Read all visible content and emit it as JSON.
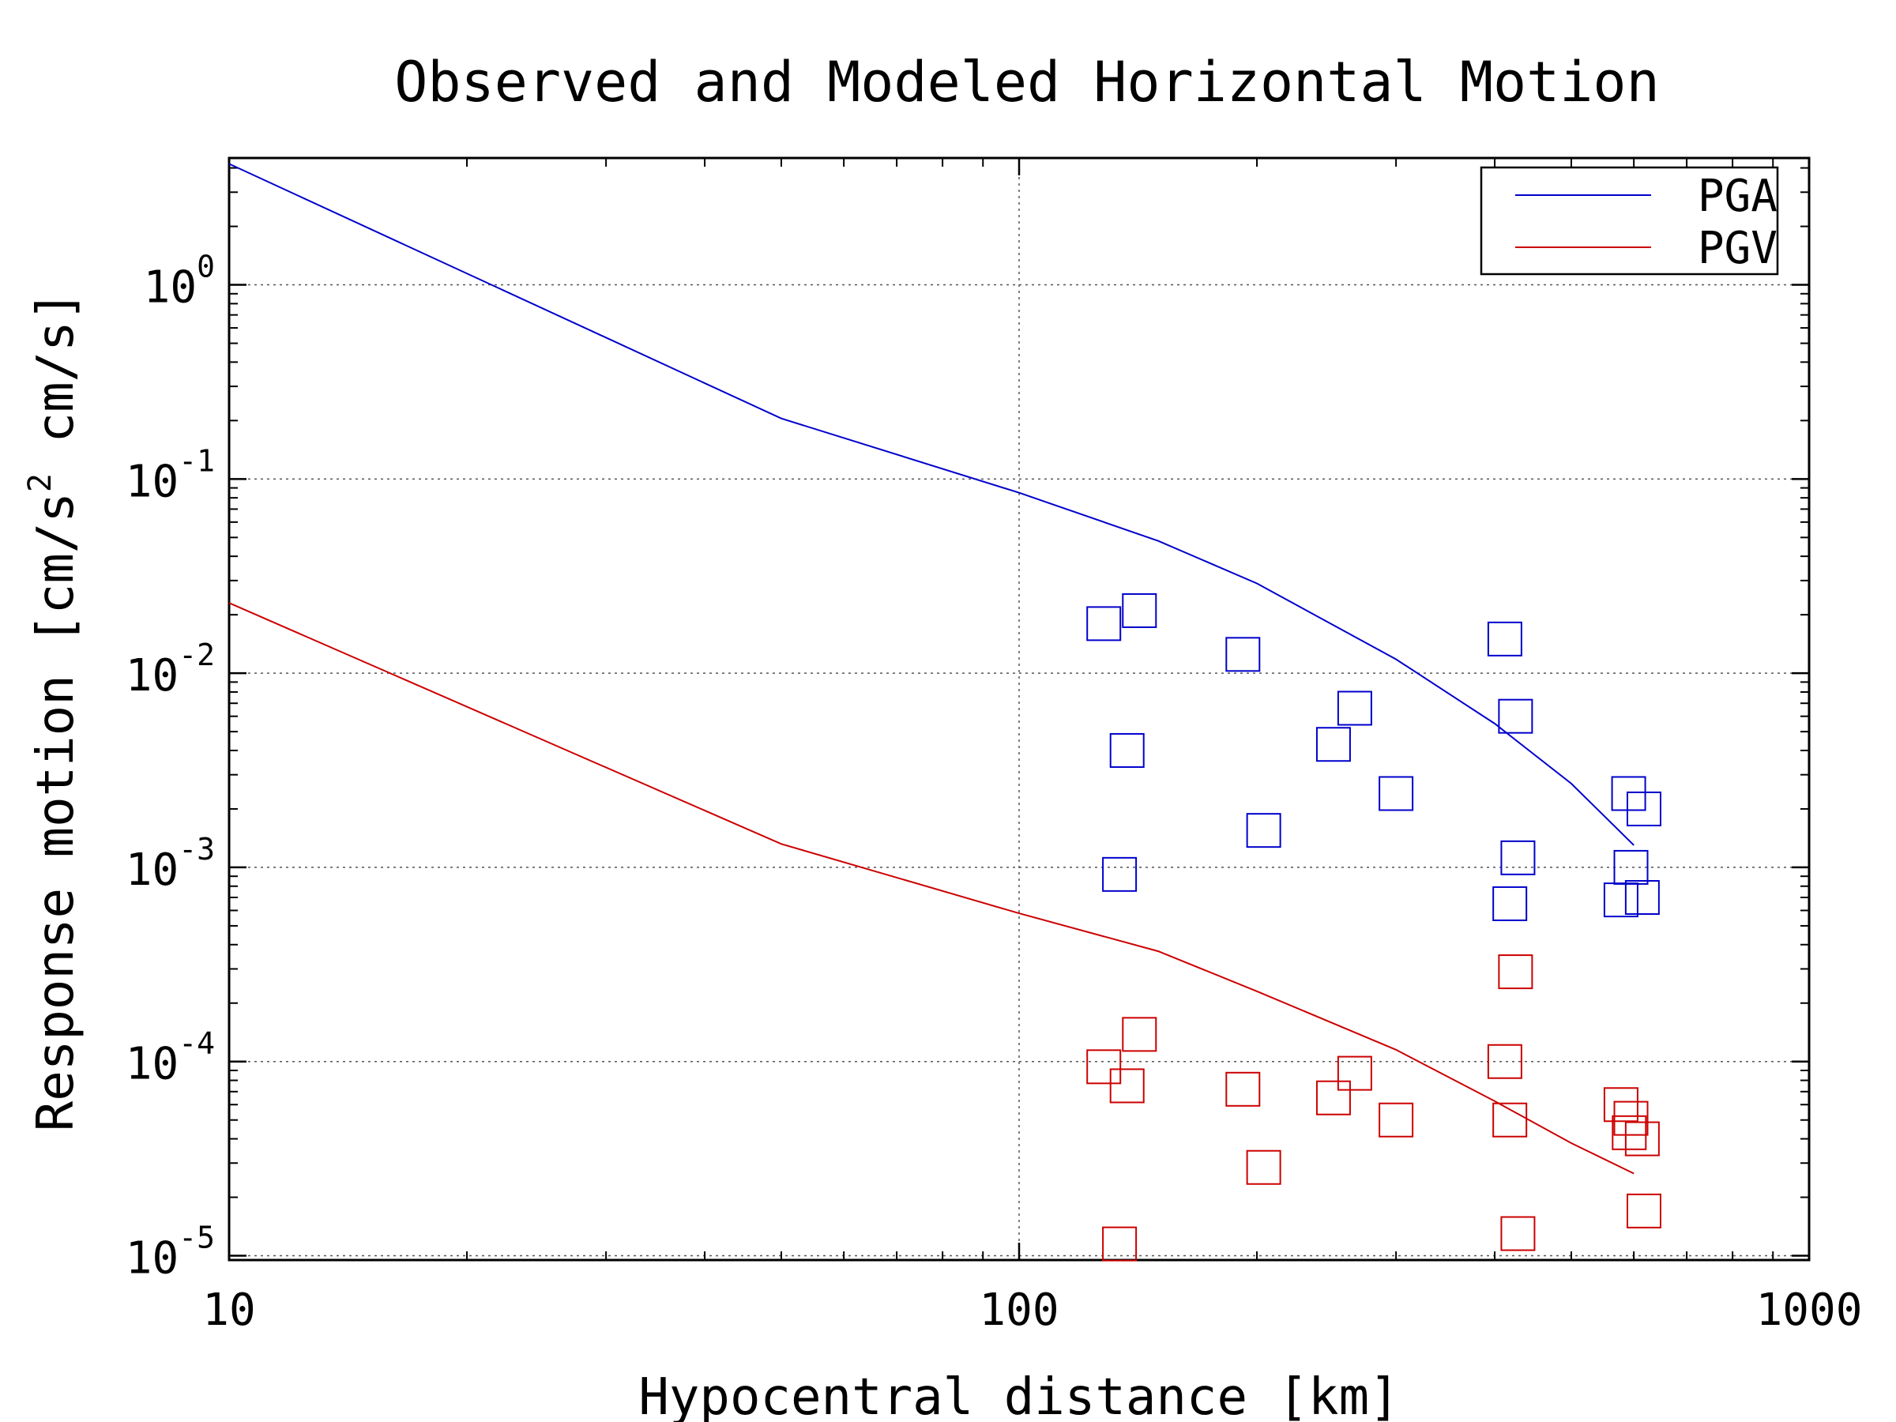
{
  "chart_data": {
    "type": "scatter",
    "title": "Observed and Modeled Horizontal Motion",
    "xlabel": "Hypocentral distance [km]",
    "ylabel_main": "Response motion [cm/s",
    "ylabel_sup": "2",
    "ylabel_tail": " cm/s]",
    "xscale": "log",
    "yscale": "log",
    "xlim": [
      10,
      1000
    ],
    "ylim": [
      9.5e-06,
      4.5
    ],
    "grid": true,
    "legend_position": "top-right",
    "x_ticks": [
      {
        "value": 10,
        "label": "10"
      },
      {
        "value": 100,
        "label": "100"
      },
      {
        "value": 1000,
        "label": "1000"
      }
    ],
    "y_ticks": [
      {
        "value": 1,
        "base": "10",
        "exp": "0"
      },
      {
        "value": 0.1,
        "base": "10",
        "exp": "-1"
      },
      {
        "value": 0.01,
        "base": "10",
        "exp": "-2"
      },
      {
        "value": 0.001,
        "base": "10",
        "exp": "-3"
      },
      {
        "value": 0.0001,
        "base": "10",
        "exp": "-4"
      },
      {
        "value": 1e-05,
        "base": "10",
        "exp": "-5"
      }
    ],
    "series": [
      {
        "name": "PGA",
        "color": "#0000cc",
        "line": [
          [
            10,
            4.2
          ],
          [
            50,
            0.205
          ],
          [
            100,
            0.085
          ],
          [
            150,
            0.048
          ],
          [
            200,
            0.029
          ],
          [
            300,
            0.0118
          ],
          [
            400,
            0.0055
          ],
          [
            500,
            0.0027
          ],
          [
            600,
            0.0013
          ]
        ],
        "points": [
          [
            128,
            0.018
          ],
          [
            142,
            0.021
          ],
          [
            137,
            0.004
          ],
          [
            134,
            0.00092
          ],
          [
            192,
            0.0125
          ],
          [
            204,
            0.00155
          ],
          [
            250,
            0.0043
          ],
          [
            266,
            0.0066
          ],
          [
            300,
            0.0024
          ],
          [
            412,
            0.015
          ],
          [
            425,
            0.006
          ],
          [
            428,
            0.00112
          ],
          [
            418,
            0.00065
          ],
          [
            591,
            0.0024
          ],
          [
            618,
            0.002
          ],
          [
            595,
            0.001
          ],
          [
            578,
            0.00068
          ],
          [
            615,
            0.0007
          ]
        ]
      },
      {
        "name": "PGV",
        "color": "#cc0000",
        "line": [
          [
            10,
            0.023
          ],
          [
            50,
            0.00132
          ],
          [
            100,
            0.00058
          ],
          [
            150,
            0.00037
          ],
          [
            200,
            0.00023
          ],
          [
            300,
            0.000115
          ],
          [
            400,
            6.25e-05
          ],
          [
            500,
            3.8e-05
          ],
          [
            600,
            2.65e-05
          ]
        ],
        "points": [
          [
            128,
            9.4e-05
          ],
          [
            142,
            0.000138
          ],
          [
            137,
            7.5e-05
          ],
          [
            134,
            1.15e-05
          ],
          [
            192,
            7.2e-05
          ],
          [
            204,
            2.85e-05
          ],
          [
            250,
            6.5e-05
          ],
          [
            266,
            8.7e-05
          ],
          [
            300,
            5e-05
          ],
          [
            412,
            0.0001
          ],
          [
            425,
            0.00029
          ],
          [
            418,
            5e-05
          ],
          [
            428,
            1.3e-05
          ],
          [
            578,
            6e-05
          ],
          [
            595,
            5.1e-05
          ],
          [
            592,
            4.3e-05
          ],
          [
            615,
            4e-05
          ],
          [
            618,
            1.7e-05
          ]
        ]
      }
    ]
  }
}
